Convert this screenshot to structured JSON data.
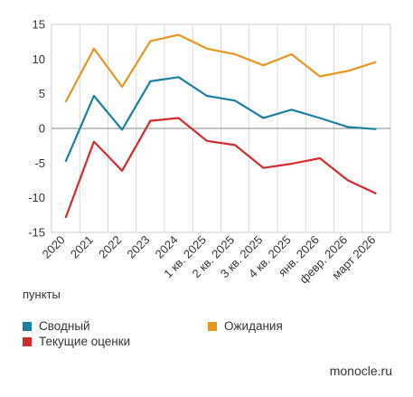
{
  "chart_data": {
    "type": "line",
    "categories": [
      "2020",
      "2021",
      "2022",
      "2023",
      "2024",
      "1 кв. 2025",
      "2 кв. 2025",
      "3 кв. 2025",
      "4 кв. 2025",
      "янв. 2026",
      "февр. 2026",
      "март 2026"
    ],
    "series": [
      {
        "name": "Сводный",
        "color": "#1a7fa0",
        "values": [
          -4.8,
          4.7,
          -0.2,
          6.8,
          7.4,
          4.7,
          4.0,
          1.5,
          2.7,
          1.5,
          0.2,
          -0.1
        ]
      },
      {
        "name": "Ожидания",
        "color": "#e8961e",
        "values": [
          3.8,
          11.5,
          6.0,
          12.6,
          13.5,
          11.5,
          10.7,
          9.1,
          10.7,
          7.5,
          8.3,
          9.6
        ]
      },
      {
        "name": "Текущие оценки",
        "color": "#d42a2c",
        "values": [
          -12.9,
          -1.9,
          -6.1,
          1.1,
          1.5,
          -1.8,
          -2.4,
          -5.7,
          -5.1,
          -4.3,
          -7.5,
          -9.4
        ]
      }
    ],
    "yticks": [
      15,
      10,
      5,
      0,
      -5,
      -10,
      -15
    ],
    "ylim": [
      -15,
      15
    ],
    "ylabel": "пункты",
    "grid": "vertical gridlines between categories, zero line",
    "legend_position": "bottom"
  },
  "legend": {
    "items": [
      {
        "label": "Сводный",
        "color": "#1a7fa0"
      },
      {
        "label": "Ожидания",
        "color": "#e8961e"
      },
      {
        "label": "Текущие оценки",
        "color": "#d42a2c"
      }
    ]
  },
  "source": "monocle.ru"
}
